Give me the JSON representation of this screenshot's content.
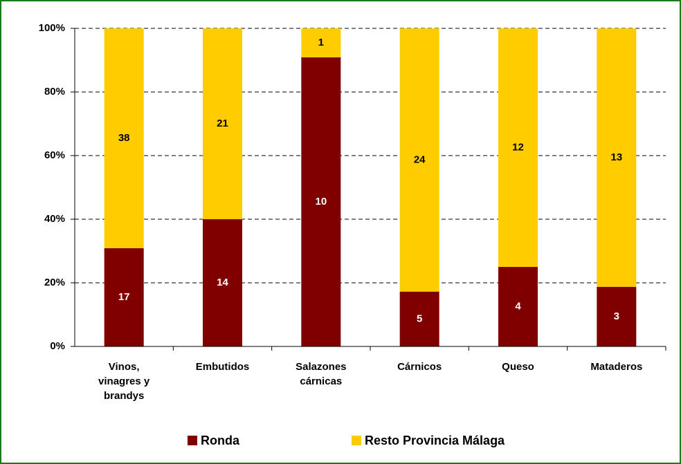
{
  "chart_data": {
    "type": "bar",
    "stacked": "percent",
    "categories": [
      "Vinos, vinagres y brandys",
      "Embutidos",
      "Salazones cárnicas",
      "Cárnicos",
      "Queso",
      "Mataderos"
    ],
    "series": [
      {
        "name": "Ronda",
        "color": "#800000",
        "label_color": "#ffffff",
        "values": [
          17,
          14,
          10,
          5,
          4,
          3
        ]
      },
      {
        "name": "Resto Provincia Málaga",
        "color": "#ffcc00",
        "label_color": "#000000",
        "values": [
          38,
          21,
          1,
          24,
          12,
          13
        ]
      }
    ],
    "ylim": [
      0,
      100
    ],
    "yticks": [
      {
        "value": 0,
        "label": "0%"
      },
      {
        "value": 20,
        "label": "20%"
      },
      {
        "value": 40,
        "label": "40%"
      },
      {
        "value": 60,
        "label": "60%"
      },
      {
        "value": 80,
        "label": "80%"
      },
      {
        "value": 100,
        "label": "100%"
      }
    ],
    "grid": true,
    "legend": "bottom"
  }
}
